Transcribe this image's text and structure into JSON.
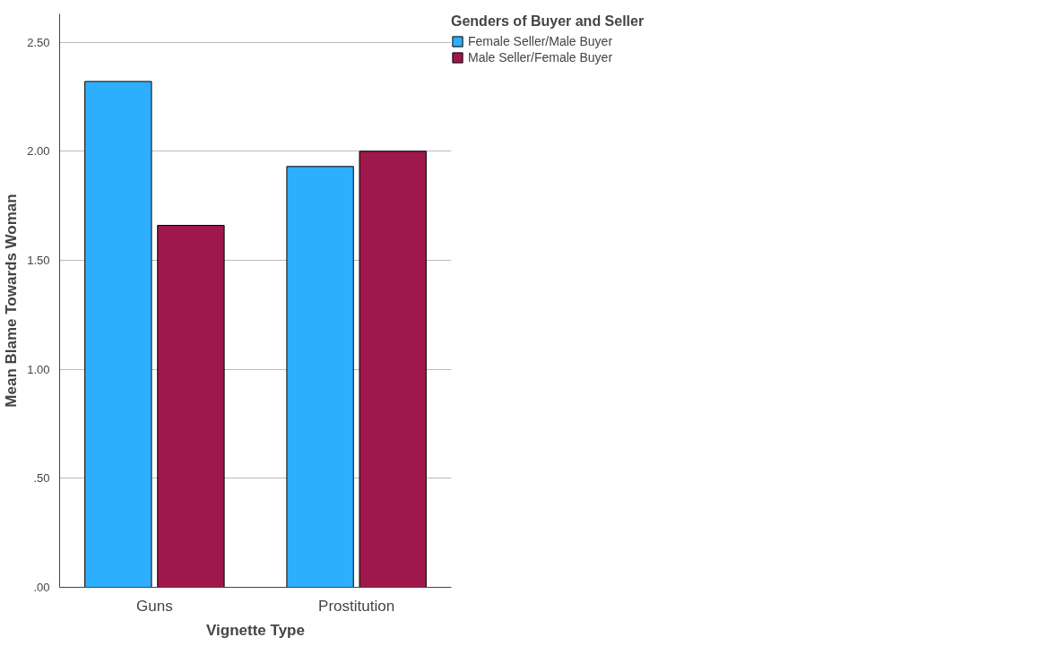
{
  "chart_data": {
    "type": "bar",
    "xlabel": "Vignette Type",
    "ylabel": "Mean Blame Towards Woman",
    "legend_title": "Genders of Buyer and Seller",
    "categories": [
      "Guns",
      "Prostitution"
    ],
    "series": [
      {
        "name": "Female Seller/Male Buyer",
        "color": "#2eaeff",
        "values": [
          2.32,
          1.93
        ]
      },
      {
        "name": "Male Seller/Female Buyer",
        "color": "#9e184c",
        "values": [
          1.66,
          2.0
        ]
      }
    ],
    "ylim": [
      0,
      2.63
    ],
    "yticks": [
      {
        "value": 0,
        "label": ".00"
      },
      {
        "value": 0.5,
        "label": ".50"
      },
      {
        "value": 1,
        "label": "1.00"
      },
      {
        "value": 1.5,
        "label": "1.50"
      },
      {
        "value": 2,
        "label": "2.00"
      },
      {
        "value": 2.5,
        "label": "2.50"
      }
    ],
    "grid": "y",
    "legend": "top right"
  }
}
